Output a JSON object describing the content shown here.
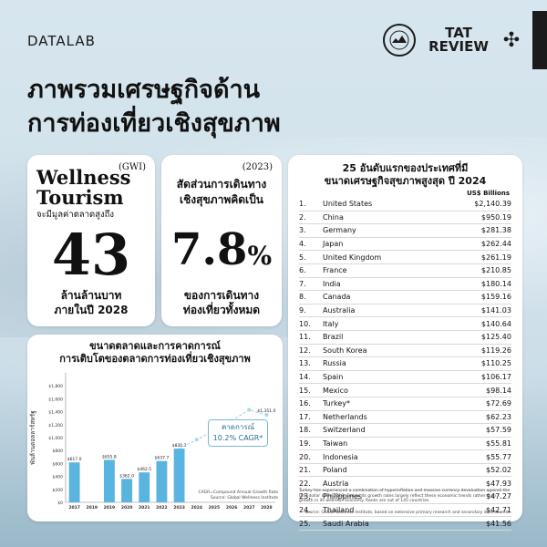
{
  "brand": "DATALAB",
  "logo": {
    "text": "TAT REVIEW"
  },
  "headline": [
    "ภาพรวมเศรษฐกิจด้าน",
    "การท่องเที่ยวเชิงสุขภาพ"
  ],
  "wellness_card": {
    "tag": "(GWI)",
    "title": "Wellness Tourism",
    "subtitle": "จะมีมูลค่าตลาดสูงถึง",
    "value": "43",
    "footer": [
      "ล้านล้านบาท",
      "ภายในปี 2028"
    ]
  },
  "share_card": {
    "year": "(2023)",
    "subtitle": [
      "สัดส่วนการเดินทาง",
      "เชิงสุขภาพคิดเป็น"
    ],
    "value": "7.8",
    "unit": "%",
    "footer": [
      "ของการเดินทาง",
      "ท่องเที่ยวทั้งหมด"
    ]
  },
  "ranking": {
    "title": [
      "25 อันดับแรกของประเทศที่มี",
      "ขนาดเศรษฐกิจสุขภาพสูงสุด ปี 2024"
    ],
    "unit": "US$ Billions",
    "rows": [
      {
        "rank": "1.",
        "country": "United States",
        "value": "$2,140.39"
      },
      {
        "rank": "2.",
        "country": "China",
        "value": "$950.19"
      },
      {
        "rank": "3.",
        "country": "Germany",
        "value": "$281.38"
      },
      {
        "rank": "4.",
        "country": "Japan",
        "value": "$262.44"
      },
      {
        "rank": "5.",
        "country": "United Kingdom",
        "value": "$261.19"
      },
      {
        "rank": "6.",
        "country": "France",
        "value": "$210.85"
      },
      {
        "rank": "7.",
        "country": "India",
        "value": "$180.14"
      },
      {
        "rank": "8.",
        "country": "Canada",
        "value": "$159.16"
      },
      {
        "rank": "9.",
        "country": "Australia",
        "value": "$141.03"
      },
      {
        "rank": "10.",
        "country": "Italy",
        "value": "$140.64"
      },
      {
        "rank": "11.",
        "country": "Brazil",
        "value": "$125.40"
      },
      {
        "rank": "12.",
        "country": "South Korea",
        "value": "$119.26"
      },
      {
        "rank": "13.",
        "country": "Russia",
        "value": "$110.25"
      },
      {
        "rank": "14.",
        "country": "Spain",
        "value": "$106.17"
      },
      {
        "rank": "15.",
        "country": "Mexico",
        "value": "$98.14"
      },
      {
        "rank": "16.",
        "country": "Turkey*",
        "value": "$72.69"
      },
      {
        "rank": "17.",
        "country": "Netherlands",
        "value": "$62.23"
      },
      {
        "rank": "18.",
        "country": "Switzerland",
        "value": "$57.59"
      },
      {
        "rank": "19.",
        "country": "Taiwan",
        "value": "$55.81"
      },
      {
        "rank": "20.",
        "country": "Indonesia",
        "value": "$55.77"
      },
      {
        "rank": "21.",
        "country": "Poland",
        "value": "$52.02"
      },
      {
        "rank": "22.",
        "country": "Austria",
        "value": "$47.93"
      },
      {
        "rank": "23.",
        "country": "Philippines",
        "value": "$47.27"
      },
      {
        "rank": "24.",
        "country": "Thailand",
        "value": "$42.71"
      },
      {
        "rank": "25.",
        "country": "Saudi Arabia",
        "value": "$41.56"
      }
    ],
    "note": "Turkey has experienced a combination of hyperinflation and massive currency devaluation against the U.S. dollar since 2018, and so its growth rates largely reflect these economic trends rather than growth in its wellness economy. Ranks are out of 145 countries.",
    "source": "Source: Global Wellness Institute, based on extensive primary research and secondary data sources."
  },
  "chart_data": {
    "type": "bar",
    "title": [
      "ขนาดตลาดและการคาดการณ์",
      "การเติบโตของตลาดการท่องเที่ยวเชิงสุขภาพ"
    ],
    "ylabel": "พันล้านดอลลาร์สหรัฐ",
    "ylim": [
      0,
      2000
    ],
    "yticks": [
      "$0",
      "$200",
      "$400",
      "$600",
      "$800",
      "$1,000",
      "$1,200",
      "$1,400",
      "$1,600",
      "$1,800"
    ],
    "categories": [
      "2017",
      "2019",
      "2019",
      "2020",
      "2021",
      "2022",
      "2023",
      "2024",
      "2025",
      "2026",
      "2027",
      "2028"
    ],
    "bars": [
      617.0,
      null,
      655.8,
      362.0,
      462.5,
      637.7,
      830.2,
      null,
      null,
      null,
      null,
      null
    ],
    "bar_labels": [
      "$617.0",
      "",
      "$655.8",
      "$362.0",
      "$462.5",
      "$637.7",
      "$830.2",
      "",
      "",
      "",
      "",
      ""
    ],
    "forecast": [
      null,
      null,
      null,
      null,
      null,
      null,
      830.2,
      968,
      1108,
      1260,
      1430,
      1351.0
    ],
    "forecast_label": "$1,351.0",
    "annotation": [
      "คาดการณ์",
      "10.2% CAGR*"
    ],
    "cagr_note": "CAGR=Compound Annual Growth Rate",
    "source": "Source: Global Wellness Institute",
    "grid": false,
    "colors": {
      "bar": "#5ab4e0",
      "forecast": "#a9d7ee"
    }
  }
}
